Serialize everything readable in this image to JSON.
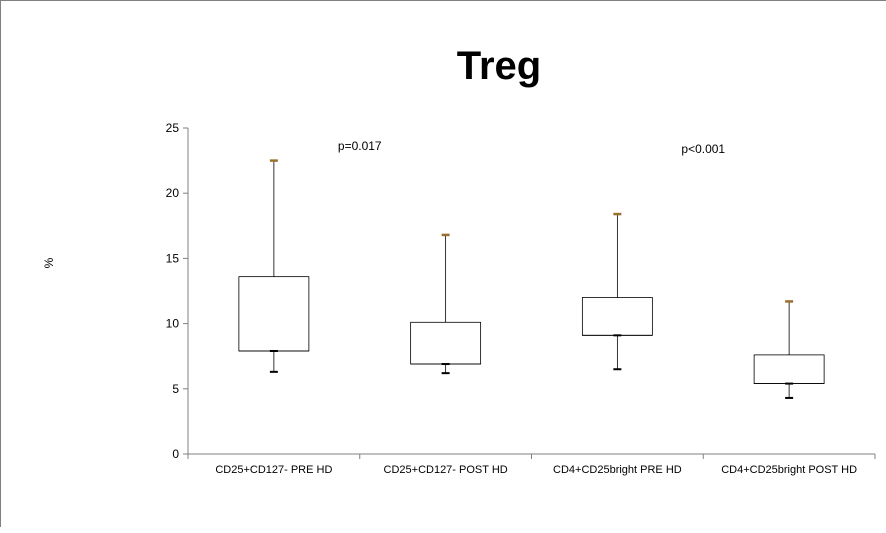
{
  "chart_data": {
    "type": "box",
    "title": "Treg",
    "ylabel": "%",
    "xlabel": "",
    "ylim": [
      0,
      25
    ],
    "yticks": [
      0,
      5,
      10,
      15,
      20,
      25
    ],
    "grid": false,
    "categories": [
      "CD25+CD127- PRE HD",
      "CD25+CD127- POST HD",
      "CD4+CD25bright PRE HD",
      "CD4+CD25bright POST HD"
    ],
    "boxes": [
      {
        "whisker_low": 6.3,
        "q1": 7.9,
        "median": 7.9,
        "q3": 13.6,
        "whisker_high": 22.5
      },
      {
        "whisker_low": 6.2,
        "q1": 6.9,
        "median": 6.9,
        "q3": 10.1,
        "whisker_high": 16.8
      },
      {
        "whisker_low": 6.5,
        "q1": 9.1,
        "median": 9.1,
        "q3": 12.0,
        "whisker_high": 18.4
      },
      {
        "whisker_low": 4.3,
        "q1": 5.4,
        "median": 5.4,
        "q3": 7.6,
        "whisker_high": 11.7
      }
    ],
    "annotations": [
      {
        "text": "p=0.017",
        "between": [
          0,
          1
        ],
        "y": 23.3
      },
      {
        "text": "p<0.001",
        "between": [
          2,
          3
        ],
        "y": 23.1
      }
    ],
    "colors": {
      "whisker_cap_high": "#9a7030",
      "whisker_cap_low": "#000000",
      "box": "#000000"
    }
  }
}
